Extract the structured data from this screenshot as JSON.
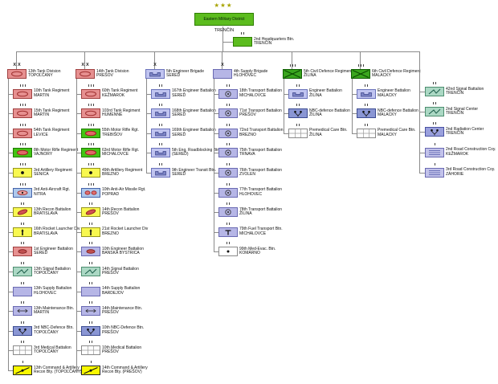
{
  "district": {
    "stars": "★★★",
    "name": "Eastern Military District",
    "location": "TRENČÍN"
  },
  "hq": {
    "name": "2nd Headquarters Btn.",
    "location": "TRENČÍN",
    "size": "II",
    "type": "hq"
  },
  "type_styles": {
    "tank": {
      "fill": "#e69090",
      "border": "#a04040",
      "symbol": "#a03030"
    },
    "motor-rifle": {
      "fill": "#42c414",
      "border": "#1e7a00",
      "symbol": "#a02020"
    },
    "artillery": {
      "fill": "#f8f850",
      "border": "#96961e",
      "symbol": "#111111"
    },
    "aa": {
      "fill": "#aec8ec",
      "border": "#4464aa",
      "symbol": "#a03030"
    },
    "aam": {
      "fill": "#aec8ec",
      "border": "#4464aa",
      "symbol": "#a02020"
    },
    "recon": {
      "fill": "#f8f850",
      "border": "#96961e",
      "symbol": "#902020"
    },
    "rocket": {
      "fill": "#f8f850",
      "border": "#96961e",
      "symbol": "#111111"
    },
    "eng-red": {
      "fill": "#e69090",
      "border": "#a04040",
      "symbol": "#802020"
    },
    "eng-blue": {
      "fill": "#b6b6e6",
      "border": "#6a6ab2",
      "symbol": "#802020"
    },
    "eng-bridge": {
      "fill": "#c0c4f0",
      "border": "#6a72ba",
      "symbol": "#7e86c6"
    },
    "signal": {
      "fill": "#abd8c4",
      "border": "#4e8e70",
      "symbol": "#1a5a48"
    },
    "supply": {
      "fill": "#b6b6e6",
      "border": "#6a6ab2",
      "symbol": "#333333"
    },
    "maintenance": {
      "fill": "#b6b6e6",
      "border": "#6a6ab2",
      "symbol": "#222222"
    },
    "nbc": {
      "fill": "#8a96d4",
      "border": "#3c4c92",
      "symbol": "#111111"
    },
    "medical": {
      "fill": "#ffffff",
      "border": "#8a8a8a",
      "symbol": "#999999"
    },
    "cmd-recon": {
      "fill": "#f8f800",
      "border": "#222222",
      "symbol": "#111111"
    },
    "transport": {
      "fill": "#b6b6e6",
      "border": "#6a6ab2",
      "symbol": "#333333"
    },
    "fuel": {
      "fill": "#b6b6e6",
      "border": "#6a6ab2",
      "symbol": "#111111"
    },
    "medevac": {
      "fill": "#ffffff",
      "border": "#8a8a8a",
      "symbol": "#111111"
    },
    "civil-defence": {
      "fill": "#3aa61e",
      "border": "#0e5e00",
      "symbol": "#0a4a00"
    },
    "premedical": {
      "fill": "#ffffff",
      "border": "#8a8a8a",
      "symbol": "#999999"
    },
    "radiation": {
      "fill": "#9aa0dd",
      "border": "#4a52a2",
      "symbol": "#111111"
    },
    "road": {
      "fill": "#c2c2ea",
      "border": "#6a6ab2",
      "symbol": "#5058a8"
    },
    "hq": {
      "fill": "#5cbc1e",
      "border": "#2e7e00",
      "symbol": "#333333"
    }
  },
  "columns": [
    {
      "head": {
        "name": "13th Tank Division",
        "location": "TOPOĽČANY",
        "size": "XX",
        "type": "tank"
      },
      "units": [
        {
          "name": "10th Tank Regiment",
          "location": "MARTIN",
          "size": "III",
          "type": "tank"
        },
        {
          "name": "15th Tank Regiment",
          "location": "MARTIN",
          "size": "III",
          "type": "tank"
        },
        {
          "name": "54th Tank Regiment",
          "location": "LEVICE",
          "size": "III",
          "type": "tank"
        },
        {
          "name": "8th Motor Rifle Regiment",
          "location": "VAJNORY",
          "size": "III",
          "type": "motor-rifle"
        },
        {
          "name": "3rd Artillery Regiment",
          "location": "SENICA",
          "size": "III",
          "type": "artillery"
        },
        {
          "name": "3rd Anti-Aircraft Rgt.",
          "location": "NITRA",
          "size": "III",
          "type": "aa"
        },
        {
          "name": "13th Recon Battalion",
          "location": "BRATISLAVA",
          "size": "II",
          "type": "recon"
        },
        {
          "name": "16th Rocket Launcher Div",
          "location": "BRATISLAVA",
          "size": "II",
          "type": "rocket"
        },
        {
          "name": "1st Engineer Battalion",
          "location": "SEREĎ",
          "size": "II",
          "type": "eng-red"
        },
        {
          "name": "13th Signal Battalion",
          "location": "TOPOĽČANY",
          "size": "II",
          "type": "signal"
        },
        {
          "name": "13th Supply Battalion",
          "location": "HLOHOVEC",
          "size": "II",
          "type": "supply"
        },
        {
          "name": "13th Maintenance Btn.",
          "location": "MARTIN",
          "size": "II",
          "type": "maintenance"
        },
        {
          "name": "3rd NBC-Defence Btn.",
          "location": "TOPOĽČANY",
          "size": "II",
          "type": "nbc"
        },
        {
          "name": "3rd Medical Battalion",
          "location": "TOPOĽČANY",
          "size": "II",
          "type": "medical"
        },
        {
          "name": "13th Command & Artillery Recon Bty. (TOPOĽČANY)",
          "location": "",
          "size": "I",
          "type": "cmd-recon"
        }
      ]
    },
    {
      "head": {
        "name": "14th Tank Division",
        "location": "PREŠOV",
        "size": "XX",
        "type": "tank"
      },
      "units": [
        {
          "name": "60th Tank Regiment",
          "location": "KEŽMAROK",
          "size": "III",
          "type": "tank"
        },
        {
          "name": "103rd Tank Regiment",
          "location": "HUMENNÉ",
          "size": "III",
          "type": "tank"
        },
        {
          "name": "55th Motor Rifle Rgt.",
          "location": "TREBIŠOV",
          "size": "III",
          "type": "motor-rifle"
        },
        {
          "name": "63rd Motor Rifle Rgt.",
          "location": "MICHALOVCE",
          "size": "III",
          "type": "motor-rifle"
        },
        {
          "name": "49th Artillery Regiment",
          "location": "BREZNO",
          "size": "III",
          "type": "artillery"
        },
        {
          "name": "10th Anti-Air Missile Rgt.",
          "location": "POPRAD",
          "size": "III",
          "type": "aam"
        },
        {
          "name": "14th Recon Battalion",
          "location": "PREŠOV",
          "size": "II",
          "type": "recon"
        },
        {
          "name": "21st Rocket Launcher Div",
          "location": "BREZNO",
          "size": "II",
          "type": "rocket"
        },
        {
          "name": "10th Engineer Battalion",
          "location": "BANSKÁ BYSTRICA",
          "size": "II",
          "type": "eng-blue"
        },
        {
          "name": "14th Signal Battalion",
          "location": "PREŠOV",
          "size": "II",
          "type": "signal"
        },
        {
          "name": "14th Supply Battalion",
          "location": "BARDEJOV",
          "size": "II",
          "type": "supply"
        },
        {
          "name": "14th Maintenance Btn.",
          "location": "PREŠOV",
          "size": "II",
          "type": "maintenance"
        },
        {
          "name": "10th NBC-Defence Btn.",
          "location": "PREŠOV",
          "size": "II",
          "type": "nbc"
        },
        {
          "name": "10th Medical Battalion",
          "location": "PREŠOV",
          "size": "II",
          "type": "medical"
        },
        {
          "name": "14th Command & Artillery Recon Bty. (PREŠOV)",
          "location": "",
          "size": "I",
          "type": "cmd-recon"
        }
      ]
    },
    {
      "head": {
        "name": "5th Engineer Brigade",
        "location": "SEREĎ",
        "size": "X",
        "type": "eng-bridge"
      },
      "units": [
        {
          "name": "167th Engineer Battalion",
          "location": "SEREĎ",
          "size": "II",
          "type": "eng-bridge"
        },
        {
          "name": "168th Engineer Battalion",
          "location": "SEREĎ",
          "size": "II",
          "type": "eng-bridge"
        },
        {
          "name": "169th Engineer Battalion",
          "location": "SEREĎ",
          "size": "II",
          "type": "eng-bridge"
        },
        {
          "name": "5th Eng. Roadblocking Btn.",
          "location": "(SEREĎ)",
          "size": "II",
          "type": "eng-bridge"
        },
        {
          "name": "9th Engineer Transit Btn.",
          "location": "SEREĎ",
          "size": "II",
          "type": "eng-bridge"
        }
      ]
    },
    {
      "head": {
        "name": "4th Supply Brigade",
        "location": "HLOHOVEC",
        "size": "X",
        "type": "supply"
      },
      "units": [
        {
          "name": "18th Transport Battalion",
          "location": "MICHALOVCE",
          "size": "II",
          "type": "transport"
        },
        {
          "name": "71st Transport Battalion",
          "location": "PREŠOV",
          "size": "II",
          "type": "transport"
        },
        {
          "name": "72nd Transport Battalion",
          "location": "BREZNO",
          "size": "II",
          "type": "transport"
        },
        {
          "name": "75th Transport Battalion",
          "location": "TRNAVA",
          "size": "II",
          "type": "transport"
        },
        {
          "name": "76th Transport Battalion",
          "location": "ZVOLEN",
          "size": "II",
          "type": "transport"
        },
        {
          "name": "77th Transport Battalion",
          "location": "HLOHOVEC",
          "size": "II",
          "type": "transport"
        },
        {
          "name": "78th Transport Battalion",
          "location": "ŽILINA",
          "size": "II",
          "type": "transport"
        },
        {
          "name": "79th Fuel Transport Btn.",
          "location": "MICHALOVCE",
          "size": "II",
          "type": "fuel"
        },
        {
          "name": "99th Med-Evac. Btn.",
          "location": "KOMÁRNO",
          "size": "II",
          "type": "medevac"
        }
      ]
    },
    {
      "head": {
        "name": "5th Civil Defence Regiment",
        "location": "ŽILINA",
        "size": "III",
        "type": "civil-defence"
      },
      "units": [
        {
          "name": "Engineer Battalion",
          "location": "ŽILINA",
          "size": "II",
          "type": "eng-bridge"
        },
        {
          "name": "NBC-defence Battalion",
          "location": "ŽILINA",
          "size": "II",
          "type": "nbc"
        },
        {
          "name": "Premedical Care Btn.",
          "location": "ŽILINA",
          "size": "II",
          "type": "premedical"
        }
      ]
    },
    {
      "head": {
        "name": "6th Civil Defence Regiment",
        "location": "MALACKY",
        "size": "III",
        "type": "civil-defence"
      },
      "units": [
        {
          "name": "Engineer Battalion",
          "location": "MALACKY",
          "size": "II",
          "type": "eng-bridge"
        },
        {
          "name": "NBC-defence Battalion",
          "location": "MALACKY",
          "size": "II",
          "type": "nbc"
        },
        {
          "name": "Premedical Care Btn.",
          "location": "MALACKY",
          "size": "II",
          "type": "premedical"
        }
      ]
    },
    {
      "head": null,
      "units": [
        {
          "name": "42nd Signal Battalion",
          "location": "TRENČÍN",
          "size": "II",
          "type": "signal"
        },
        {
          "name": "2nd Signal Center",
          "location": "TRENČÍN",
          "size": "II",
          "type": "signal"
        },
        {
          "name": "2nd Radiation Center",
          "location": "TRENČÍN",
          "size": "II",
          "type": "radiation"
        },
        {
          "name": "2nd Road Construction Coy.",
          "location": "KEŽMAROK",
          "size": "I",
          "type": "road"
        },
        {
          "name": "3rd Road Construction Coy.",
          "location": "ZÁHORIE",
          "size": "I",
          "type": "road"
        }
      ]
    }
  ]
}
